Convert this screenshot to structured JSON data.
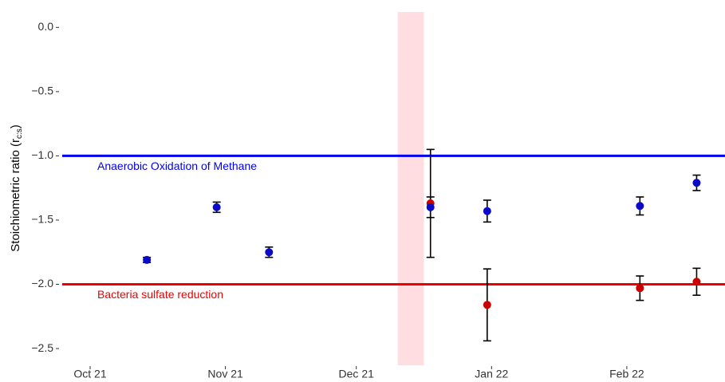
{
  "chart_data": {
    "type": "scatter",
    "ylabel_parts": [
      "Stoichiometric ratio (r",
      "c:s",
      ")"
    ],
    "xlim": [
      -6.4,
      145.5
    ],
    "xticks": [
      {
        "value": 0,
        "label": "Oct 21"
      },
      {
        "value": 31,
        "label": "Nov 21"
      },
      {
        "value": 61,
        "label": "Dec 21"
      },
      {
        "value": 92,
        "label": "Jan 22"
      },
      {
        "value": 123,
        "label": "Feb 22"
      }
    ],
    "ylim": [
      -2.63,
      0.12
    ],
    "yticks": [
      {
        "value": 0,
        "label": "0.0"
      },
      {
        "value": -0.5,
        "label": "−0.5"
      },
      {
        "value": -1,
        "label": "−1.0"
      },
      {
        "value": -1.5,
        "label": "−1.5"
      },
      {
        "value": -2,
        "label": "−2.0"
      },
      {
        "value": -2.5,
        "label": "−2.5"
      }
    ],
    "shade": {
      "xlim": [
        70.5,
        76.5
      ],
      "color": "#ffdde0"
    },
    "hlines": [
      {
        "value": -1,
        "color": "#0000ee",
        "label": "Anaerobic Oxidation of Methane"
      },
      {
        "value": -2,
        "color": "#ee0000",
        "label": "Bacteria sulfate reduction"
      }
    ],
    "error_color": "#000000",
    "series": [
      {
        "color": "#cc0000",
        "x": [
          78,
          91,
          126,
          139
        ],
        "values": [
          -1.37,
          -2.16,
          -2.03,
          -1.98
        ],
        "errors": [
          0.42,
          0.28,
          0.095,
          0.105
        ]
      },
      {
        "color": "#0a0ac8",
        "x": [
          13,
          29,
          41,
          78,
          91,
          126,
          139
        ],
        "values": [
          -1.81,
          -1.4,
          -1.75,
          -1.4,
          -1.43,
          -1.39,
          -1.21
        ],
        "errors": [
          0.02,
          0.04,
          0.04,
          0.08,
          0.085,
          0.07,
          0.06
        ]
      }
    ]
  }
}
